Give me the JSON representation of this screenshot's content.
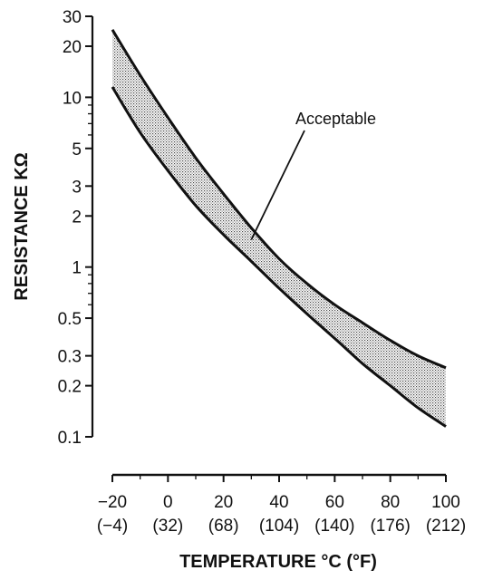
{
  "chart_data": {
    "type": "area",
    "xlabel": "TEMPERATURE °C (°F)",
    "ylabel": "RESISTANCE KΩ",
    "x_scale": "linear",
    "y_scale": "log",
    "xlim": [
      -26,
      102
    ],
    "ylim": [
      0.09,
      30
    ],
    "grid": false,
    "x_ticks": [
      {
        "value": -20,
        "label": "−20",
        "sub": "(−4)"
      },
      {
        "value": 0,
        "label": "0",
        "sub": "(32)"
      },
      {
        "value": 20,
        "label": "20",
        "sub": "(68)"
      },
      {
        "value": 40,
        "label": "40",
        "sub": "(104)"
      },
      {
        "value": 60,
        "label": "60",
        "sub": "(140)"
      },
      {
        "value": 80,
        "label": "80",
        "sub": "(176)"
      },
      {
        "value": 100,
        "label": "100",
        "sub": "(212)"
      }
    ],
    "y_ticks": [
      {
        "value": 30,
        "label": "30"
      },
      {
        "value": 20,
        "label": "20"
      },
      {
        "value": 10,
        "label": "10"
      },
      {
        "value": 5,
        "label": "5"
      },
      {
        "value": 3,
        "label": "3"
      },
      {
        "value": 2,
        "label": "2"
      },
      {
        "value": 1,
        "label": "1"
      },
      {
        "value": 0.5,
        "label": "0.5"
      },
      {
        "value": 0.3,
        "label": "0.3"
      },
      {
        "value": 0.2,
        "label": "0.2"
      },
      {
        "value": 0.1,
        "label": "0.1"
      }
    ],
    "y_minor_ticks": [
      9,
      8,
      7,
      6,
      0.9,
      0.8,
      0.7,
      0.6
    ],
    "x_minor_ticks": [
      -10,
      10,
      30,
      50,
      70,
      90
    ],
    "series": [
      {
        "role": "upper",
        "x": [
          -20,
          -10,
          0,
          10,
          20,
          30,
          40,
          50,
          60,
          70,
          80,
          90,
          100
        ],
        "y": [
          25,
          13.5,
          7.6,
          4.4,
          2.7,
          1.7,
          1.12,
          0.8,
          0.6,
          0.47,
          0.37,
          0.3,
          0.255
        ]
      },
      {
        "role": "lower",
        "x": [
          -20,
          -10,
          0,
          10,
          20,
          30,
          40,
          50,
          60,
          70,
          80,
          90,
          100
        ],
        "y": [
          11.5,
          6.2,
          3.7,
          2.3,
          1.55,
          1.08,
          0.75,
          0.53,
          0.38,
          0.27,
          0.2,
          0.148,
          0.115
        ]
      }
    ],
    "annotation": {
      "text": "Acceptable",
      "target": [
        30,
        1.45
      ]
    }
  }
}
